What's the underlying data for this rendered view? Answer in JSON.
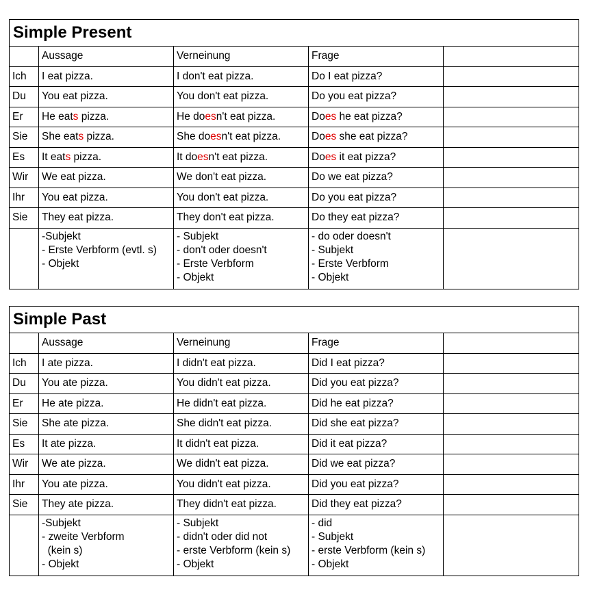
{
  "accent_color": "#e00000",
  "tables": [
    {
      "title": "Simple Present",
      "headers": [
        "",
        "Aussage",
        "Verneinung",
        "Frage",
        ""
      ],
      "rows": [
        {
          "pronoun": "Ich",
          "cells": [
            [
              {
                "t": "I eat pizza."
              }
            ],
            [
              {
                "t": "I don't eat pizza."
              }
            ],
            [
              {
                "t": "Do I eat pizza?"
              }
            ]
          ]
        },
        {
          "pronoun": "Du",
          "cells": [
            [
              {
                "t": "You eat pizza."
              }
            ],
            [
              {
                "t": "You don't eat pizza."
              }
            ],
            [
              {
                "t": "Do you eat pizza?"
              }
            ]
          ]
        },
        {
          "pronoun": "Er",
          "cells": [
            [
              {
                "t": "He eat"
              },
              {
                "t": "s",
                "red": true
              },
              {
                "t": " pizza."
              }
            ],
            [
              {
                "t": "He do"
              },
              {
                "t": "es",
                "red": true
              },
              {
                "t": "n't eat pizza."
              }
            ],
            [
              {
                "t": "Do"
              },
              {
                "t": "es",
                "red": true
              },
              {
                "t": " he eat pizza?"
              }
            ]
          ]
        },
        {
          "pronoun": "Sie",
          "cells": [
            [
              {
                "t": "She eat"
              },
              {
                "t": "s",
                "red": true
              },
              {
                "t": " pizza."
              }
            ],
            [
              {
                "t": "She do"
              },
              {
                "t": "es",
                "red": true
              },
              {
                "t": "n't eat pizza."
              }
            ],
            [
              {
                "t": "Do"
              },
              {
                "t": "es",
                "red": true
              },
              {
                "t": " she eat pizza?"
              }
            ]
          ]
        },
        {
          "pronoun": "Es",
          "cells": [
            [
              {
                "t": "It eat"
              },
              {
                "t": "s",
                "red": true
              },
              {
                "t": " pizza."
              }
            ],
            [
              {
                "t": "It do"
              },
              {
                "t": "es",
                "red": true
              },
              {
                "t": "n't eat pizza."
              }
            ],
            [
              {
                "t": "Do"
              },
              {
                "t": "es",
                "red": true
              },
              {
                "t": " it eat pizza?"
              }
            ]
          ]
        },
        {
          "pronoun": "Wir",
          "cells": [
            [
              {
                "t": "We eat pizza."
              }
            ],
            [
              {
                "t": "We don't eat pizza."
              }
            ],
            [
              {
                "t": "Do we eat pizza?"
              }
            ]
          ]
        },
        {
          "pronoun": "Ihr",
          "cells": [
            [
              {
                "t": "You eat pizza."
              }
            ],
            [
              {
                "t": "You don't eat pizza."
              }
            ],
            [
              {
                "t": "Do you eat pizza?"
              }
            ]
          ]
        },
        {
          "pronoun": "Sie",
          "cells": [
            [
              {
                "t": "They eat pizza."
              }
            ],
            [
              {
                "t": "They don't eat pizza."
              }
            ],
            [
              {
                "t": "Do they eat pizza?"
              }
            ]
          ]
        }
      ],
      "notes": [
        "-Subjekt\n- Erste Verbform (evtl. s)\n- Objekt",
        "- Subjekt\n- don't oder doesn't\n- Erste Verbform\n- Objekt",
        "- do oder doesn't\n- Subjekt\n- Erste Verbform\n- Objekt"
      ]
    },
    {
      "title": "Simple Past",
      "headers": [
        "",
        "Aussage",
        "Verneinung",
        "Frage",
        ""
      ],
      "rows": [
        {
          "pronoun": "Ich",
          "cells": [
            [
              {
                "t": "I ate pizza."
              }
            ],
            [
              {
                "t": "I didn't eat pizza."
              }
            ],
            [
              {
                "t": "Did I eat pizza?"
              }
            ]
          ]
        },
        {
          "pronoun": "Du",
          "cells": [
            [
              {
                "t": "You ate pizza."
              }
            ],
            [
              {
                "t": "You didn't eat pizza."
              }
            ],
            [
              {
                "t": "Did you eat pizza?"
              }
            ]
          ]
        },
        {
          "pronoun": "Er",
          "cells": [
            [
              {
                "t": "He ate pizza."
              }
            ],
            [
              {
                "t": "He didn't eat pizza."
              }
            ],
            [
              {
                "t": "Did he eat pizza?"
              }
            ]
          ]
        },
        {
          "pronoun": "Sie",
          "cells": [
            [
              {
                "t": "She ate pizza."
              }
            ],
            [
              {
                "t": "She didn't eat pizza."
              }
            ],
            [
              {
                "t": "Did she eat pizza?"
              }
            ]
          ]
        },
        {
          "pronoun": "Es",
          "cells": [
            [
              {
                "t": "It ate pizza."
              }
            ],
            [
              {
                "t": "It didn't eat pizza."
              }
            ],
            [
              {
                "t": "Did it eat pizza?"
              }
            ]
          ]
        },
        {
          "pronoun": "Wir",
          "cells": [
            [
              {
                "t": "We ate pizza."
              }
            ],
            [
              {
                "t": "We didn't eat pizza."
              }
            ],
            [
              {
                "t": "Did we eat pizza?"
              }
            ]
          ]
        },
        {
          "pronoun": "Ihr",
          "cells": [
            [
              {
                "t": "You ate pizza."
              }
            ],
            [
              {
                "t": "You didn't eat pizza."
              }
            ],
            [
              {
                "t": "Did you eat pizza?"
              }
            ]
          ]
        },
        {
          "pronoun": "Sie",
          "cells": [
            [
              {
                "t": "They ate pizza."
              }
            ],
            [
              {
                "t": "They didn't eat pizza."
              }
            ],
            [
              {
                "t": "Did they eat pizza?"
              }
            ]
          ]
        }
      ],
      "notes": [
        "-Subjekt\n- zweite Verbform\n  (kein s)\n- Objekt",
        "- Subjekt\n- didn't oder did not\n- erste Verbform (kein s)\n- Objekt",
        "- did\n- Subjekt\n- erste Verbform (kein s)\n- Objekt"
      ]
    }
  ]
}
